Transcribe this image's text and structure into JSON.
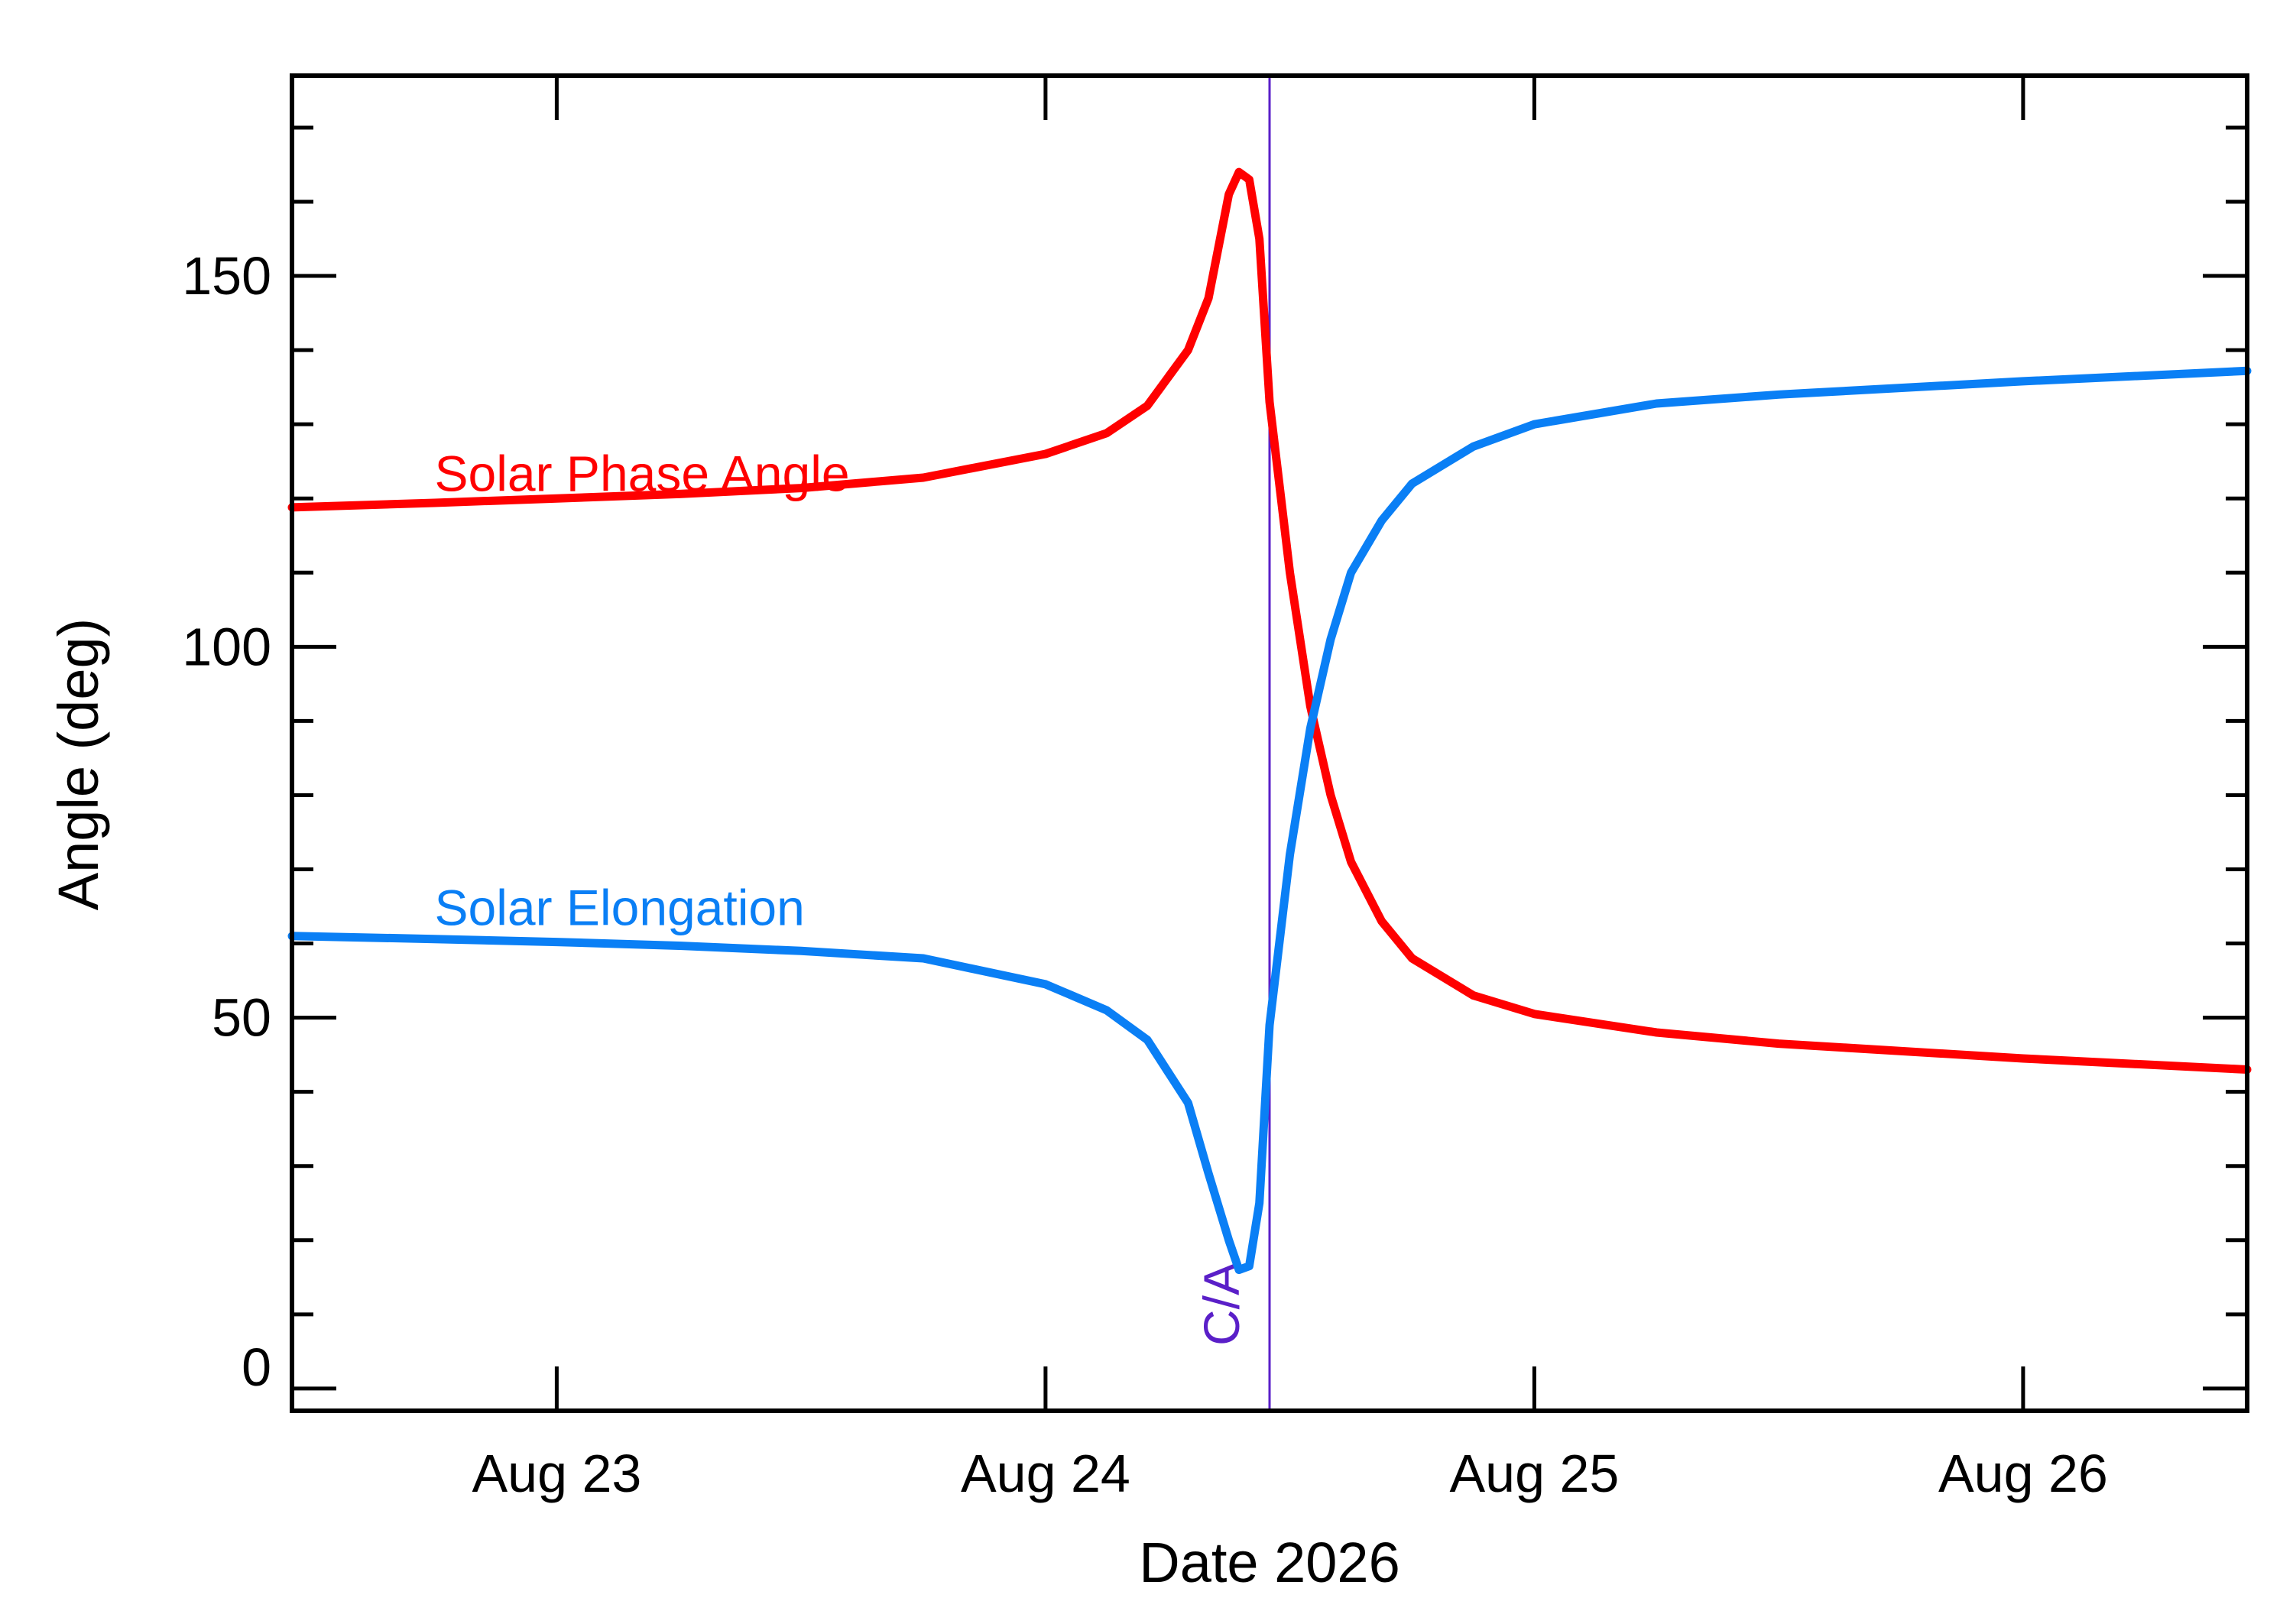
{
  "chart_data": {
    "type": "line",
    "xlabel": "Date 2026",
    "ylabel": "Angle (deg)",
    "xlim": [
      "2026-08-22 11:00",
      "2026-08-26 11:00"
    ],
    "ylim": [
      -3,
      177
    ],
    "x_ticks": [
      {
        "date": "2026-08-23",
        "label": "Aug 23"
      },
      {
        "date": "2026-08-24",
        "label": "Aug 24"
      },
      {
        "date": "2026-08-25",
        "label": "Aug 25"
      },
      {
        "date": "2026-08-26",
        "label": "Aug 26"
      }
    ],
    "y_ticks": [
      0,
      50,
      100,
      150
    ],
    "grid": false,
    "closest_approach": {
      "date": "2026-08-24 11:00",
      "label": "C/A",
      "color": "#5a1fc8"
    },
    "series": [
      {
        "name": "Solar Phase Angle",
        "color": "#ff0000",
        "points": [
          [
            "2026-08-22 11:00",
            118.8
          ],
          [
            "2026-08-22 18:00",
            119.4
          ],
          [
            "2026-08-23 00:00",
            120.0
          ],
          [
            "2026-08-23 06:00",
            120.6
          ],
          [
            "2026-08-23 12:00",
            121.4
          ],
          [
            "2026-08-23 18:00",
            122.8
          ],
          [
            "2026-08-24 00:00",
            126.0
          ],
          [
            "2026-08-24 03:00",
            128.8
          ],
          [
            "2026-08-24 05:00",
            132.5
          ],
          [
            "2026-08-24 07:00",
            140.0
          ],
          [
            "2026-08-24 08:00",
            147.0
          ],
          [
            "2026-08-24 09:00",
            161.0
          ],
          [
            "2026-08-24 09:30",
            164.0
          ],
          [
            "2026-08-24 10:00",
            163.0
          ],
          [
            "2026-08-24 10:30",
            155.0
          ],
          [
            "2026-08-24 11:00",
            133.0
          ],
          [
            "2026-08-24 12:00",
            110.0
          ],
          [
            "2026-08-24 13:00",
            92.0
          ],
          [
            "2026-08-24 14:00",
            80.0
          ],
          [
            "2026-08-24 15:00",
            71.0
          ],
          [
            "2026-08-24 16:30",
            63.0
          ],
          [
            "2026-08-24 18:00",
            58.0
          ],
          [
            "2026-08-24 21:00",
            53.0
          ],
          [
            "2026-08-25 00:00",
            50.5
          ],
          [
            "2026-08-25 06:00",
            48.0
          ],
          [
            "2026-08-25 12:00",
            46.5
          ],
          [
            "2026-08-26 00:00",
            44.5
          ],
          [
            "2026-08-26 11:00",
            43.0
          ]
        ]
      },
      {
        "name": "Solar Elongation",
        "color": "#0a7ff5",
        "points": [
          [
            "2026-08-22 11:00",
            61.0
          ],
          [
            "2026-08-22 18:00",
            60.6
          ],
          [
            "2026-08-23 00:00",
            60.2
          ],
          [
            "2026-08-23 06:00",
            59.7
          ],
          [
            "2026-08-23 12:00",
            59.0
          ],
          [
            "2026-08-23 18:00",
            58.0
          ],
          [
            "2026-08-24 00:00",
            54.5
          ],
          [
            "2026-08-24 03:00",
            51.0
          ],
          [
            "2026-08-24 05:00",
            47.0
          ],
          [
            "2026-08-24 07:00",
            38.5
          ],
          [
            "2026-08-24 08:00",
            29.0
          ],
          [
            "2026-08-24 09:00",
            20.0
          ],
          [
            "2026-08-24 09:30",
            16.0
          ],
          [
            "2026-08-24 10:00",
            16.5
          ],
          [
            "2026-08-24 10:30",
            25.0
          ],
          [
            "2026-08-24 11:00",
            49.0
          ],
          [
            "2026-08-24 12:00",
            72.0
          ],
          [
            "2026-08-24 13:00",
            89.0
          ],
          [
            "2026-08-24 14:00",
            101.0
          ],
          [
            "2026-08-24 15:00",
            110.0
          ],
          [
            "2026-08-24 16:30",
            117.0
          ],
          [
            "2026-08-24 18:00",
            122.0
          ],
          [
            "2026-08-24 21:00",
            127.0
          ],
          [
            "2026-08-25 00:00",
            130.0
          ],
          [
            "2026-08-25 06:00",
            132.8
          ],
          [
            "2026-08-25 12:00",
            134.0
          ],
          [
            "2026-08-26 00:00",
            135.8
          ],
          [
            "2026-08-26 11:00",
            137.2
          ]
        ]
      }
    ],
    "annotations": [
      {
        "text": "Solar Phase Angle",
        "series": 0,
        "date": "2026-08-22 18:00",
        "y": 121
      },
      {
        "text": "Solar Elongation",
        "series": 1,
        "date": "2026-08-22 18:00",
        "y": 62.5
      }
    ]
  }
}
